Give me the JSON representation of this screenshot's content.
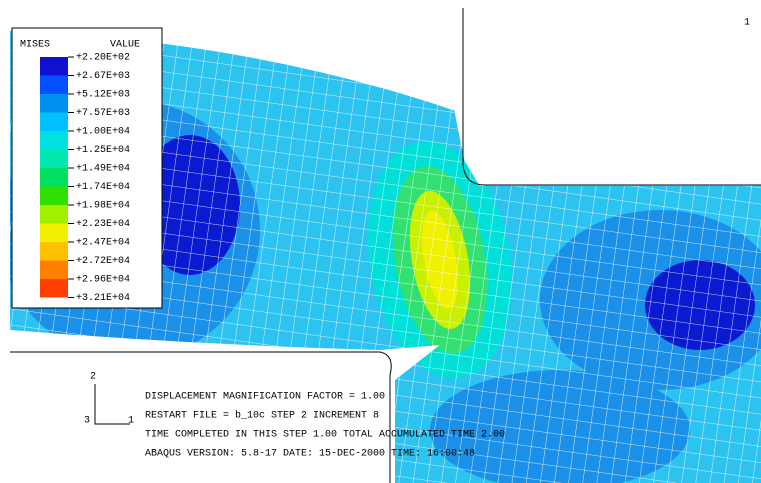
{
  "viewport_label": "1",
  "legend": {
    "title": "MISES",
    "header": "VALUE",
    "labels": [
      "+2.20E+02",
      "+2.67E+03",
      "+5.12E+03",
      "+7.57E+03",
      "+1.00E+04",
      "+1.25E+04",
      "+1.49E+04",
      "+1.74E+04",
      "+1.98E+04",
      "+2.23E+04",
      "+2.47E+04",
      "+2.72E+04",
      "+2.96E+04",
      "+3.21E+04"
    ]
  },
  "triad": {
    "vertical": "2",
    "depth": "3",
    "horizontal": "1"
  },
  "info_lines": [
    "DISPLACEMENT MAGNIFICATION FACTOR =  1.00",
    "RESTART FILE = b_10c   STEP 2  INCREMENT 8",
    "TIME COMPLETED IN THIS STEP    1.00    TOTAL ACCUMULATED TIME    2.00",
    "ABAQUS VERSION: 5.8-17   DATE: 15-DEC-2000  TIME: 16:00:48"
  ]
}
